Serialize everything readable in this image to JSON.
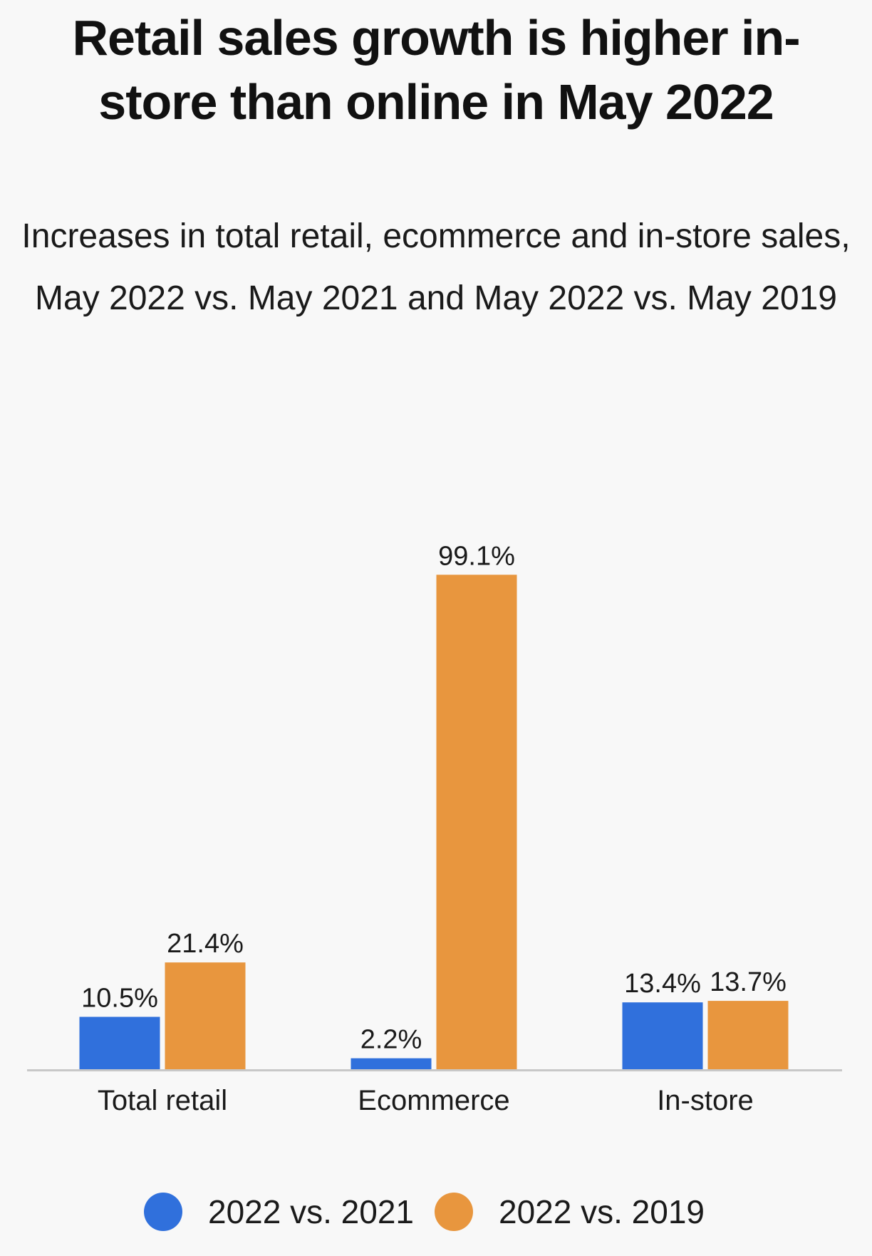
{
  "chart_data": {
    "type": "bar",
    "title": "Retail sales growth is higher in-store than online in May 2022",
    "subtitle": "Increases in total retail, ecommerce and in-store sales, May 2022 vs. May 2021 and May 2022 vs. May 2019",
    "categories": [
      "Total retail",
      "Ecommerce",
      "In-store"
    ],
    "series": [
      {
        "name": "2022 vs. 2021",
        "color": "#3070dc",
        "values": [
          10.5,
          2.2,
          13.4
        ],
        "labels": [
          "10.5%",
          "2.2%",
          "13.4%"
        ]
      },
      {
        "name": "2022 vs. 2019",
        "color": "#e8963e",
        "values": [
          21.4,
          99.1,
          13.7
        ],
        "labels": [
          "21.4%",
          "99.1%",
          "13.7%"
        ]
      }
    ],
    "ylim": [
      0,
      100
    ],
    "grid": false,
    "legend_position": "bottom"
  }
}
